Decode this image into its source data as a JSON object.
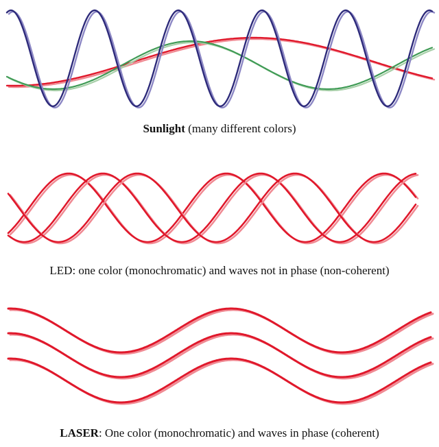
{
  "colors": {
    "navy": "#2d2a7a",
    "navy_light": "#8c87c4",
    "green": "#3f9b55",
    "green_light": "#a7cfa8",
    "red": "#e0182b",
    "red_light": "#f08a93"
  },
  "panels": [
    {
      "id": "sunlight",
      "caption_bold": "Sunlight",
      "caption_rest": " (many different colors)"
    },
    {
      "id": "led",
      "caption_bold": "LED",
      "caption_rest": ": one color (monochromatic) and waves not in phase (non-coherent)"
    },
    {
      "id": "laser",
      "caption_bold": "LASER",
      "caption_rest": ": One color (monochromatic) and waves in phase (coherent)"
    }
  ]
}
